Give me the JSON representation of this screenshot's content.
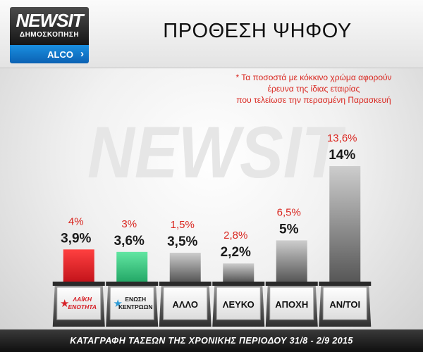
{
  "header": {
    "brand": "NEWSIT",
    "survey_label": "ΔΗΜΟΣΚΟΠΗΣΗ",
    "pollster": "ALCO",
    "title": "ΠΡΟΘΕΣΗ ΨΗΦΟΥ"
  },
  "note": [
    "* Τα ποσοστά με κόκκινο χρώμα αφορούν",
    "έρευνα της ίδιας εταιρίας",
    "που τελείωσε την περασμένη Παρασκευή"
  ],
  "watermark": "NEWSIT",
  "footer": "ΚΑΤΑΓΡΑΦΗ ΤΑΣΕΩΝ ΤΗΣ ΧΡΟΝΙΚΗΣ ΠΕΡΙΟΔΟΥ 31/8  -  2/9 2015",
  "chart_data": {
    "type": "bar",
    "categories": [
      "ΛΑΪΚΗ ΕΝΟΤΗΤΑ",
      "ΕΝΩΣΗ ΚΕΝΤΡΩΩΝ",
      "ΑΛΛΟ",
      "ΛΕΥΚΟ",
      "ΑΠΟΧΗ",
      "ΑΝ/ΤΟΙ"
    ],
    "category_labels": [
      {
        "logo": true,
        "lines": [
          "ΛΑΪΚΗ",
          "ΕΝΟΤΗΤΑ"
        ]
      },
      {
        "logo": true,
        "lines": [
          "ΕΝΩΣΗ",
          "ΚΕΝΤΡΩΩΝ"
        ]
      },
      {
        "logo": false,
        "lines": [
          "ΑΛΛΟ"
        ]
      },
      {
        "logo": false,
        "lines": [
          "ΛΕΥΚΟ"
        ]
      },
      {
        "logo": false,
        "lines": [
          "ΑΠΟΧΗ"
        ]
      },
      {
        "logo": false,
        "lines": [
          "ΑΝ/ΤΟΙ"
        ]
      }
    ],
    "series": [
      {
        "values": [
          3.9,
          3.6,
          3.5,
          2.2,
          5,
          14
        ],
        "labels": [
          "3,9%",
          "3,6%",
          "3,5%",
          "2,2%",
          "5%",
          "14%"
        ]
      },
      {
        "values": [
          4,
          3,
          1.5,
          2.8,
          6.5,
          13.6
        ],
        "labels": [
          "4%",
          "3%",
          "1,5%",
          "2,8%",
          "6,5%",
          "13,6%"
        ]
      }
    ],
    "bar_colors": [
      "#e8232a",
      "#3fcf8c",
      "#8a8a8a",
      "#8a8a8a",
      "#8a8a8a",
      "#8a8a8a"
    ],
    "ylim": [
      0,
      14
    ],
    "grid": false,
    "previous_label_color": "#d9261f"
  }
}
